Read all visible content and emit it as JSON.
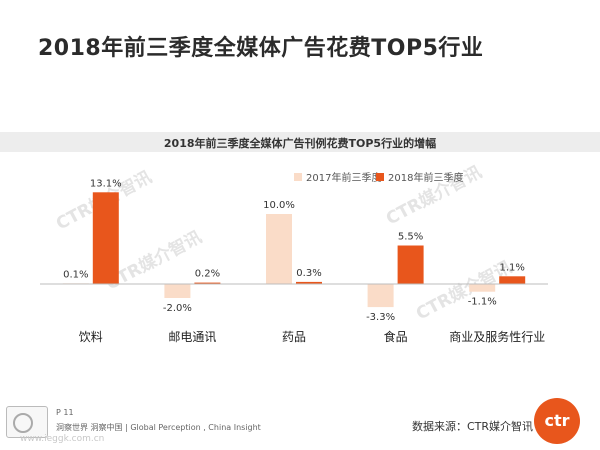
{
  "page": {
    "title": "2018年前三季度全媒体广告花费TOP5行业"
  },
  "chart_data": {
    "type": "bar",
    "title": "2018年前三季度全媒体广告刊例花费TOP5行业的增幅",
    "categories": [
      "饮料",
      "邮电通讯",
      "药品",
      "食品",
      "商业及服务性行业"
    ],
    "series": [
      {
        "name": "2017年前三季度",
        "values": [
          0.1,
          -2.0,
          10.0,
          -3.3,
          -1.1
        ],
        "labels": [
          "0.1%",
          "-2.0%",
          "10.0%",
          "-3.3%",
          "-1.1%"
        ],
        "color": "#fadcc8"
      },
      {
        "name": "2018年前三季度",
        "values": [
          13.1,
          0.2,
          0.3,
          5.5,
          1.1
        ],
        "labels": [
          "13.1%",
          "0.2%",
          "0.3%",
          "5.5%",
          "1.1%"
        ],
        "color": "#e8561c"
      }
    ],
    "ylim": [
      -4,
      14
    ],
    "legend": "top-right",
    "grid": false
  },
  "watermarks": [
    "CTR媒介智讯",
    "CTR媒介智讯",
    "CTR媒介智讯",
    "CTR媒介智讯"
  ],
  "footer": {
    "page_number": "P 11",
    "tagline": "洞察世界 洞察中国 | Global Perception , China Insight",
    "source": "数据来源：CTR媒介智讯",
    "logo_text": "ctr",
    "watermark_url": "www.ieggk.com.cn"
  }
}
